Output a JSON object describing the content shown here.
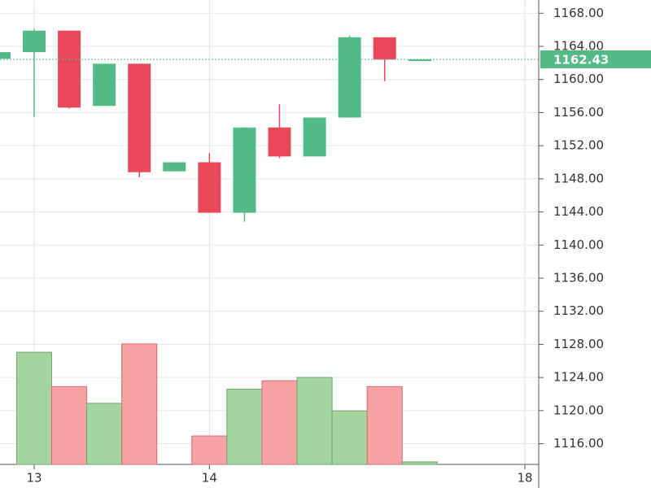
{
  "chart_data": {
    "type": "candlestick",
    "categories": [
      null,
      "13",
      null,
      null,
      null,
      null,
      "14",
      null,
      null,
      null,
      null,
      null,
      null,
      null,
      null,
      "18"
    ],
    "open": [
      1162.5,
      1163.3,
      1165.9,
      1156.8,
      1161.9,
      1148.9,
      1150.0,
      1143.9,
      1154.2,
      1150.7,
      1155.4,
      1165.1,
      1162.3,
      null,
      null,
      null
    ],
    "high": [
      1163.3,
      1166.1,
      1165.9,
      1161.9,
      1161.9,
      1150.0,
      1151.1,
      1154.2,
      1157.0,
      1155.4,
      1165.3,
      1165.1,
      1162.43,
      null,
      null,
      null
    ],
    "low": [
      1162.5,
      1155.5,
      1156.5,
      1156.8,
      1148.2,
      1148.9,
      1143.9,
      1142.8,
      1150.5,
      1150.7,
      1155.4,
      1159.8,
      1162.3,
      null,
      null,
      null
    ],
    "close": [
      1163.3,
      1165.9,
      1156.6,
      1161.9,
      1148.8,
      1150.0,
      1143.9,
      1154.2,
      1150.7,
      1155.4,
      1165.1,
      1162.4,
      1162.43,
      null,
      null,
      null
    ],
    "volume": [
      null,
      134,
      93,
      73,
      144,
      0,
      34,
      90,
      100,
      104,
      64,
      93,
      3,
      null,
      null,
      null
    ],
    "volume_lim": [
      0,
      555
    ],
    "ylim": [
      1113.5,
      1169.6
    ],
    "yticks": [
      {
        "value": 1116,
        "label": "1116.00"
      },
      {
        "value": 1120,
        "label": "1120.00"
      },
      {
        "value": 1124,
        "label": "1124.00"
      },
      {
        "value": 1128,
        "label": "1128.00"
      },
      {
        "value": 1132,
        "label": "1132.00"
      },
      {
        "value": 1136,
        "label": "1136.00"
      },
      {
        "value": 1140,
        "label": "1140.00"
      },
      {
        "value": 1144,
        "label": "1144.00"
      },
      {
        "value": 1148,
        "label": "1148.00"
      },
      {
        "value": 1152,
        "label": "1152.00"
      },
      {
        "value": 1156,
        "label": "1156.00"
      },
      {
        "value": 1160,
        "label": "1160.00"
      },
      {
        "value": 1164,
        "label": "1164.00"
      },
      {
        "value": 1168,
        "label": "1168.00"
      }
    ],
    "last_price": {
      "value": 1162.43,
      "label": "1162.43"
    },
    "grid": true,
    "up_color": "#53b987",
    "down_color": "#e8495a",
    "volume_up_color": "#a5d6a0",
    "volume_down_color": "#f7a3a6",
    "volume_up_border": "#6aa66a",
    "volume_down_border": "#d26a70"
  }
}
